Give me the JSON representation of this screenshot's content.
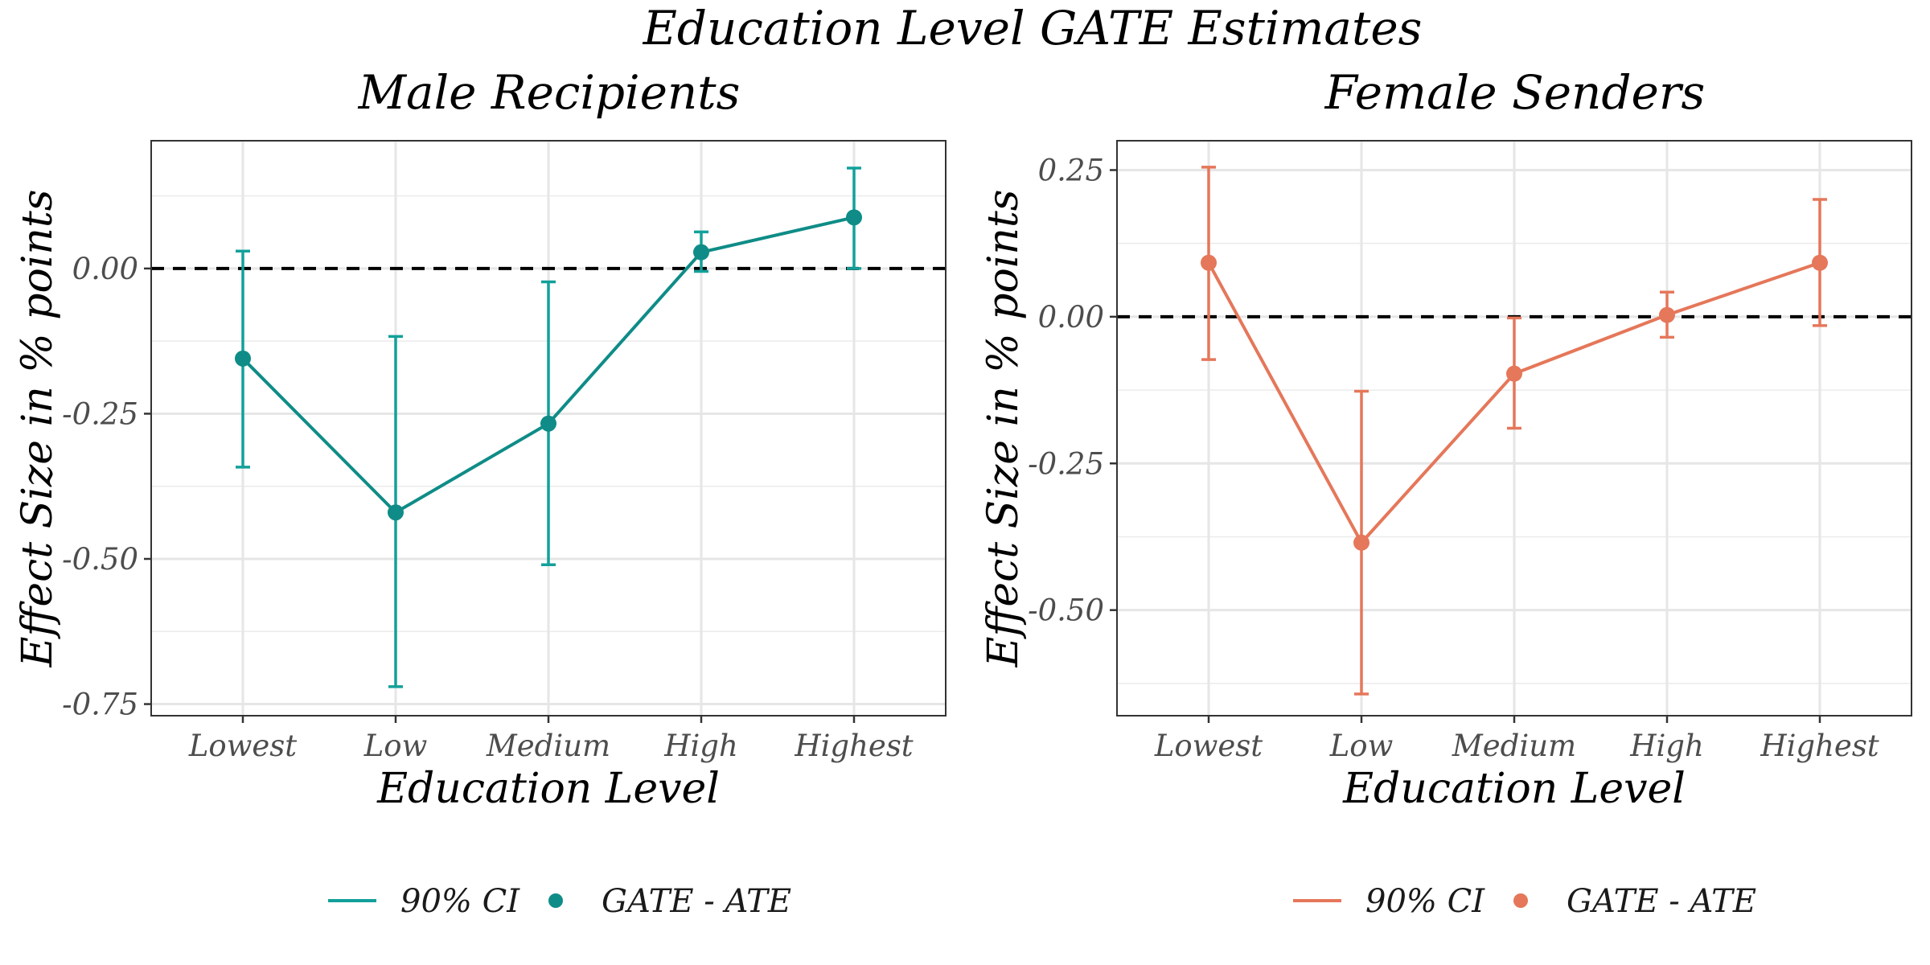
{
  "title": "Education Level GATE Estimates",
  "chart_data": [
    {
      "type": "line",
      "title": "Male Recipients",
      "xlabel": "Education Level",
      "ylabel": "Effect Size in % points",
      "color": "#0f8c87",
      "error_color": "#13a09a",
      "categories": [
        "Lowest",
        "Low",
        "Medium",
        "High",
        "Highest"
      ],
      "values": [
        -0.155,
        -0.42,
        -0.267,
        0.028,
        0.088
      ],
      "ci_lower": [
        -0.342,
        -0.72,
        -0.51,
        -0.005,
        0.0
      ],
      "ci_upper": [
        0.03,
        -0.117,
        -0.023,
        0.063,
        0.173
      ],
      "ylim": [
        -0.77,
        0.22
      ],
      "yticks": [
        0.0,
        -0.25,
        -0.5,
        -0.75
      ],
      "ytick_labels": [
        "0.00",
        "-0.25",
        "-0.50",
        "-0.75"
      ],
      "reference_line": 0,
      "legend": [
        "90% CI",
        "GATE - ATE"
      ]
    },
    {
      "type": "line",
      "title": "Female Senders",
      "xlabel": "Education Level",
      "ylabel": "Effect Size in % points",
      "color": "#e5775a",
      "error_color": "#e5775a",
      "categories": [
        "Lowest",
        "Low",
        "Medium",
        "High",
        "Highest"
      ],
      "values": [
        0.092,
        -0.385,
        -0.097,
        0.003,
        0.092
      ],
      "ci_lower": [
        -0.073,
        -0.643,
        -0.19,
        -0.035,
        -0.015
      ],
      "ci_upper": [
        0.255,
        -0.127,
        -0.002,
        0.042,
        0.2
      ],
      "ylim": [
        -0.68,
        0.3
      ],
      "yticks": [
        0.25,
        0.0,
        -0.25,
        -0.5
      ],
      "ytick_labels": [
        "0.25",
        "0.00",
        "-0.25",
        "-0.50"
      ],
      "reference_line": 0,
      "legend": [
        "90% CI",
        "GATE - ATE"
      ]
    }
  ]
}
